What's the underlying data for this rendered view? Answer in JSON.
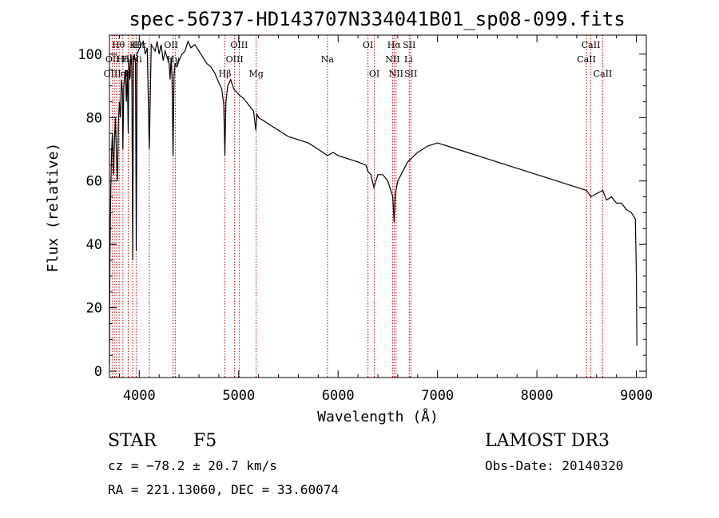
{
  "chart_data": {
    "type": "line",
    "title": "spec-56737-HD143707N334041B01_sp08-099.fits",
    "xlabel": "Wavelength (Å)",
    "ylabel": "Flux (relative)",
    "xlim": [
      3700,
      9100
    ],
    "ylim": [
      -2,
      106
    ],
    "xticks": [
      4000,
      5000,
      6000,
      7000,
      8000,
      9000
    ],
    "yticks": [
      0,
      20,
      40,
      60,
      80,
      100
    ],
    "series": [
      {
        "name": "spectrum",
        "x": [
          3700,
          3705,
          3712,
          3720,
          3730,
          3740,
          3750,
          3760,
          3770,
          3780,
          3790,
          3800,
          3810,
          3820,
          3830,
          3835,
          3845,
          3860,
          3870,
          3880,
          3889,
          3895,
          3905,
          3915,
          3925,
          3934,
          3942,
          3950,
          3962,
          3970,
          3978,
          3990,
          4005,
          4020,
          4040,
          4060,
          4080,
          4101,
          4120,
          4140,
          4160,
          4180,
          4200,
          4220,
          4240,
          4260,
          4280,
          4300,
          4310,
          4320,
          4330,
          4340,
          4350,
          4360,
          4380,
          4400,
          4430,
          4460,
          4490,
          4520,
          4560,
          4600,
          4640,
          4680,
          4720,
          4760,
          4800,
          4830,
          4850,
          4861,
          4872,
          4890,
          4920,
          4950,
          4980,
          5010,
          5050,
          5100,
          5150,
          5172,
          5183,
          5200,
          5250,
          5300,
          5400,
          5500,
          5600,
          5700,
          5800,
          5893,
          5950,
          6000,
          6100,
          6200,
          6280,
          6300,
          6330,
          6360,
          6400,
          6450,
          6500,
          6530,
          6550,
          6563,
          6575,
          6600,
          6650,
          6700,
          6800,
          6900,
          7000,
          7100,
          7200,
          7300,
          7400,
          7500,
          7600,
          7700,
          7800,
          7900,
          8000,
          8100,
          8200,
          8300,
          8400,
          8500,
          8542,
          8600,
          8662,
          8700,
          8750,
          8800,
          8850,
          8900,
          8950,
          8990,
          9000,
          9005
        ],
        "values": [
          2,
          35,
          55,
          68,
          75,
          62,
          72,
          80,
          68,
          60,
          78,
          85,
          80,
          92,
          88,
          70,
          90,
          95,
          85,
          95,
          75,
          98,
          92,
          100,
          96,
          35,
          98,
          100,
          97,
          38,
          100,
          101,
          102,
          103,
          104,
          100,
          102,
          70,
          103,
          102,
          101,
          104,
          100,
          103,
          98,
          101,
          99,
          97,
          92,
          99,
          92,
          68,
          93,
          97,
          96,
          98,
          100,
          101,
          104,
          102,
          103,
          101,
          99,
          97,
          96,
          94,
          91,
          89,
          84,
          68,
          85,
          90,
          92,
          89,
          88,
          87,
          86,
          84,
          82,
          76,
          81,
          80,
          79,
          78,
          76,
          74,
          73,
          72,
          70,
          68,
          69,
          68,
          67,
          66,
          65,
          63,
          62,
          58,
          62,
          62,
          60,
          57,
          55,
          47,
          56,
          60,
          63,
          66,
          69,
          71,
          72,
          71,
          70,
          69,
          68,
          67,
          66,
          65,
          64,
          63,
          62,
          61,
          60,
          59,
          58,
          57,
          55,
          56,
          57,
          54,
          55,
          53,
          53,
          51,
          50,
          48,
          30,
          8
        ]
      }
    ],
    "lines": {
      "positions": [
        3727,
        3750,
        3771,
        3798,
        3835,
        3889,
        3934,
        3968,
        4101,
        4341,
        4364,
        4861,
        4959,
        5007,
        5175,
        5893,
        6300,
        6364,
        6548,
        6563,
        6583,
        6716,
        6731,
        8498,
        8542,
        8662
      ],
      "labels": [
        {
          "text": "Hθ",
          "x": 3790,
          "row": 1
        },
        {
          "text": "K",
          "x": 3934,
          "row": 1
        },
        {
          "text": "H",
          "x": 3968,
          "row": 1
        },
        {
          "text": "Hε",
          "x": 4010,
          "row": 1
        },
        {
          "text": "OII",
          "x": 4320,
          "row": 1
        },
        {
          "text": "OIII",
          "x": 5005,
          "row": 1
        },
        {
          "text": "OI",
          "x": 6300,
          "row": 1
        },
        {
          "text": "Hα",
          "x": 6563,
          "row": 1
        },
        {
          "text": "SII",
          "x": 6716,
          "row": 1
        },
        {
          "text": "CaII",
          "x": 8542,
          "row": 1
        },
        {
          "text": "OII",
          "x": 3730,
          "row": 2
        },
        {
          "text": "Hδ",
          "x": 3835,
          "row": 2
        },
        {
          "text": "He",
          "x": 3889,
          "row": 2
        },
        {
          "text": "Ni",
          "x": 3975,
          "row": 2
        },
        {
          "text": "Hγ",
          "x": 4341,
          "row": 2
        },
        {
          "text": "OIII",
          "x": 4959,
          "row": 2
        },
        {
          "text": "Na",
          "x": 5893,
          "row": 2
        },
        {
          "text": "NII",
          "x": 6548,
          "row": 2
        },
        {
          "text": "Li",
          "x": 6708,
          "row": 2
        },
        {
          "text": "CaII",
          "x": 8498,
          "row": 2
        },
        {
          "text": "OIII",
          "x": 3729,
          "row": 3
        },
        {
          "text": "η",
          "x": 3835,
          "row": 3
        },
        {
          "text": "H",
          "x": 3889,
          "row": 3
        },
        {
          "text": "Hβ",
          "x": 4861,
          "row": 3
        },
        {
          "text": "Mg",
          "x": 5175,
          "row": 3
        },
        {
          "text": "OI",
          "x": 6364,
          "row": 3
        },
        {
          "text": "NII",
          "x": 6583,
          "row": 3
        },
        {
          "text": "SII",
          "x": 6731,
          "row": 3
        },
        {
          "text": "CaII",
          "x": 8662,
          "row": 3
        }
      ]
    },
    "colors": {
      "line_markers": "#cc0000",
      "spectrum": "#000000"
    }
  },
  "info": {
    "object_type": "STAR",
    "subclass": "F5",
    "survey": "LAMOST DR3",
    "cz": "cz = −78.2 ± 20.7 km/s",
    "obs_date": "Obs-Date: 20140320",
    "radec": "RA = 221.13060, DEC =  33.60074"
  }
}
